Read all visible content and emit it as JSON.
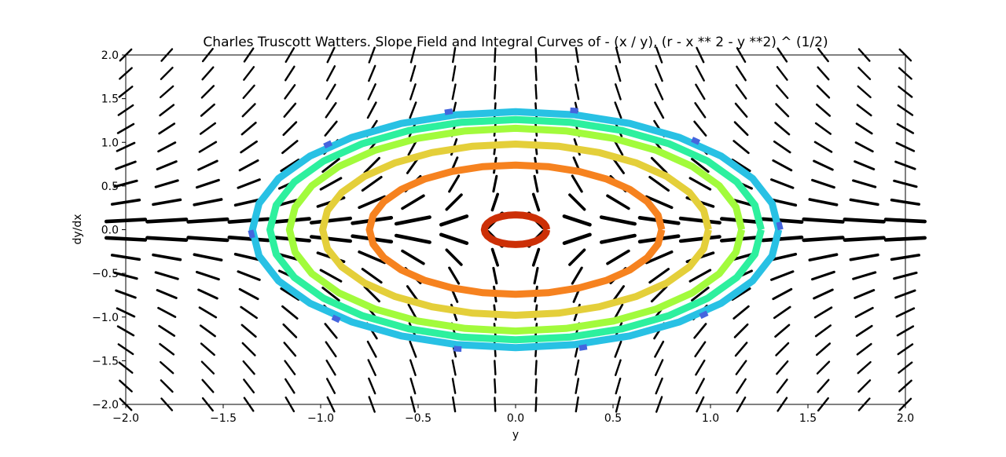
{
  "chart_data": {
    "type": "slope-field-contour",
    "title": "Charles Truscott Watters. Slope Field and Integral Curves of - (x / y), (r - x ** 2 - y **2) ^ (1/2)",
    "xlabel": "y",
    "ylabel": "dy/dx",
    "xlim": [
      -2.0,
      2.0
    ],
    "ylim": [
      -2.0,
      2.0
    ],
    "x_ticks": [
      "−2.0",
      "−1.5",
      "−1.0",
      "−0.5",
      "0.0",
      "0.5",
      "1.0",
      "1.5",
      "2.0"
    ],
    "y_ticks": [
      "2.0",
      "1.5",
      "1.0",
      "0.5",
      "0.0",
      "−0.5",
      "−1.0",
      "−1.5",
      "−2.0"
    ],
    "x_tick_values": [
      -2.0,
      -1.5,
      -1.0,
      -0.5,
      0.0,
      0.5,
      1.0,
      1.5,
      2.0
    ],
    "y_tick_values": [
      2.0,
      1.5,
      1.0,
      0.5,
      0.0,
      -0.5,
      -1.0,
      -1.5,
      -2.0
    ],
    "grid": false,
    "legend": "none",
    "slope_field": {
      "color": "#000000",
      "x_start": -2.0,
      "x_step": 0.2105,
      "x_count": 20,
      "y_start": -2.0,
      "y_step": 0.2105,
      "y_count": 20
    },
    "contours": [
      {
        "rx": 0.16,
        "ry": 0.17,
        "color": "#cc2f06",
        "dashed": false
      },
      {
        "rx": 0.75,
        "ry": 0.74,
        "color": "#f6821f",
        "dashed": false
      },
      {
        "rx": 0.99,
        "ry": 0.98,
        "color": "#e4cf3a",
        "dashed": false
      },
      {
        "rx": 1.16,
        "ry": 1.16,
        "color": "#a2fb3c",
        "dashed": false
      },
      {
        "rx": 1.26,
        "ry": 1.26,
        "color": "#2df09e",
        "dashed": false
      },
      {
        "rx": 1.35,
        "ry": 1.35,
        "color": "#28c1e4",
        "dashed": false
      },
      {
        "rx": 1.36,
        "ry": 1.4,
        "color": "#4565de",
        "dashed": true
      }
    ]
  }
}
